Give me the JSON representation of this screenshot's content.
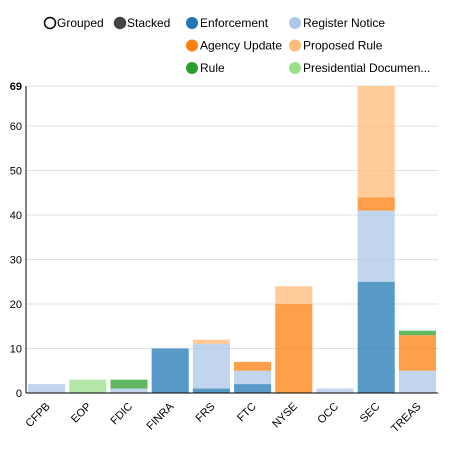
{
  "controls": [
    {
      "label": "Grouped",
      "selected": false
    },
    {
      "label": "Stacked",
      "selected": true
    }
  ],
  "chart_data": {
    "type": "bar",
    "stacked": true,
    "categories": [
      "CFPB",
      "EOP",
      "FDIC",
      "FINRA",
      "FRS",
      "FTC",
      "NYSE",
      "OCC",
      "SEC",
      "TREAS"
    ],
    "series": [
      {
        "name": "Enforcement",
        "color": "#1f77b4",
        "values": [
          0,
          0,
          0,
          10,
          1,
          2,
          0,
          0,
          25,
          0
        ]
      },
      {
        "name": "Register Notice",
        "color": "#aec7e8",
        "values": [
          2,
          0,
          1,
          0,
          10,
          3,
          0,
          1,
          16,
          5
        ]
      },
      {
        "name": "Agency Update",
        "color": "#ff7f0e",
        "values": [
          0,
          0,
          0,
          0,
          0,
          2,
          20,
          0,
          3,
          8
        ]
      },
      {
        "name": "Proposed Rule",
        "color": "#ffbb78",
        "values": [
          0,
          0,
          0,
          0,
          1,
          0,
          4,
          0,
          25,
          0
        ]
      },
      {
        "name": "Rule",
        "color": "#2ca02c",
        "values": [
          0,
          0,
          2,
          0,
          0,
          0,
          0,
          0,
          0,
          1
        ]
      },
      {
        "name": "Presidential Documen...",
        "color": "#98df8a",
        "values": [
          0,
          3,
          0,
          0,
          0,
          0,
          0,
          0,
          0,
          0
        ]
      }
    ],
    "ylim": [
      0,
      69
    ],
    "yticks": [
      "0",
      "10",
      "20",
      "30",
      "40",
      "50",
      "60"
    ],
    "ymax_label": "69",
    "grid": true,
    "legend_position": "top"
  }
}
